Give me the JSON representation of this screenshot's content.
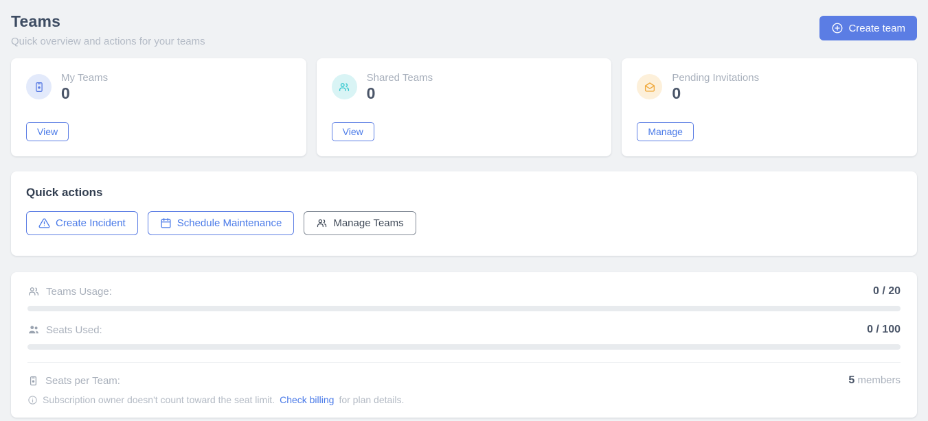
{
  "page": {
    "title": "Teams",
    "subtitle": "Quick overview and actions for your teams"
  },
  "header": {
    "create_team_label": "Create team",
    "create_team_icon": "plus-circle-icon"
  },
  "stat_cards": [
    {
      "label": "My Teams",
      "value": "0",
      "action_label": "View",
      "icon": "badge-icon",
      "accent_color": "#5b7de4",
      "icon_bg": "#e3eafb"
    },
    {
      "label": "Shared Teams",
      "value": "0",
      "action_label": "View",
      "icon": "group-icon",
      "accent_color": "#2ec6cd",
      "icon_bg": "#d9f4f5"
    },
    {
      "label": "Pending Invitations",
      "value": "0",
      "action_label": "Manage",
      "icon": "mail-open-icon",
      "accent_color": "#f0a93c",
      "icon_bg": "#fdf0da"
    }
  ],
  "quick_actions": {
    "title": "Quick actions",
    "buttons": [
      {
        "label": "Create Incident",
        "icon": "warning-icon",
        "style": "blue"
      },
      {
        "label": "Schedule Maintenance",
        "icon": "calendar-icon",
        "style": "blue"
      },
      {
        "label": "Manage Teams",
        "icon": "group-icon",
        "style": "neutral"
      }
    ]
  },
  "usage": {
    "teams_usage": {
      "label": "Teams Usage:",
      "value": "0 / 20",
      "icon": "group-outline-icon",
      "progress_percent": 0
    },
    "seats_used": {
      "label": "Seats Used:",
      "value": "0 / 100",
      "icon": "group-filled-icon",
      "progress_percent": 0
    },
    "seats_per_team": {
      "label": "Seats per Team:",
      "value": "5",
      "unit": " members",
      "icon": "badge-icon"
    },
    "note": {
      "icon": "info-icon",
      "text": "Subscription owner doesn't count toward the seat limit.",
      "link_label": "Check billing",
      "suffix": "for plan details."
    }
  },
  "colors": {
    "accent_blue": "#5b7de4",
    "link_blue": "#4a7ae8",
    "teal": "#2ec6cd",
    "orange": "#f0a93c",
    "page_bg": "#f0f2f4",
    "progress_track": "#e8ebee"
  }
}
